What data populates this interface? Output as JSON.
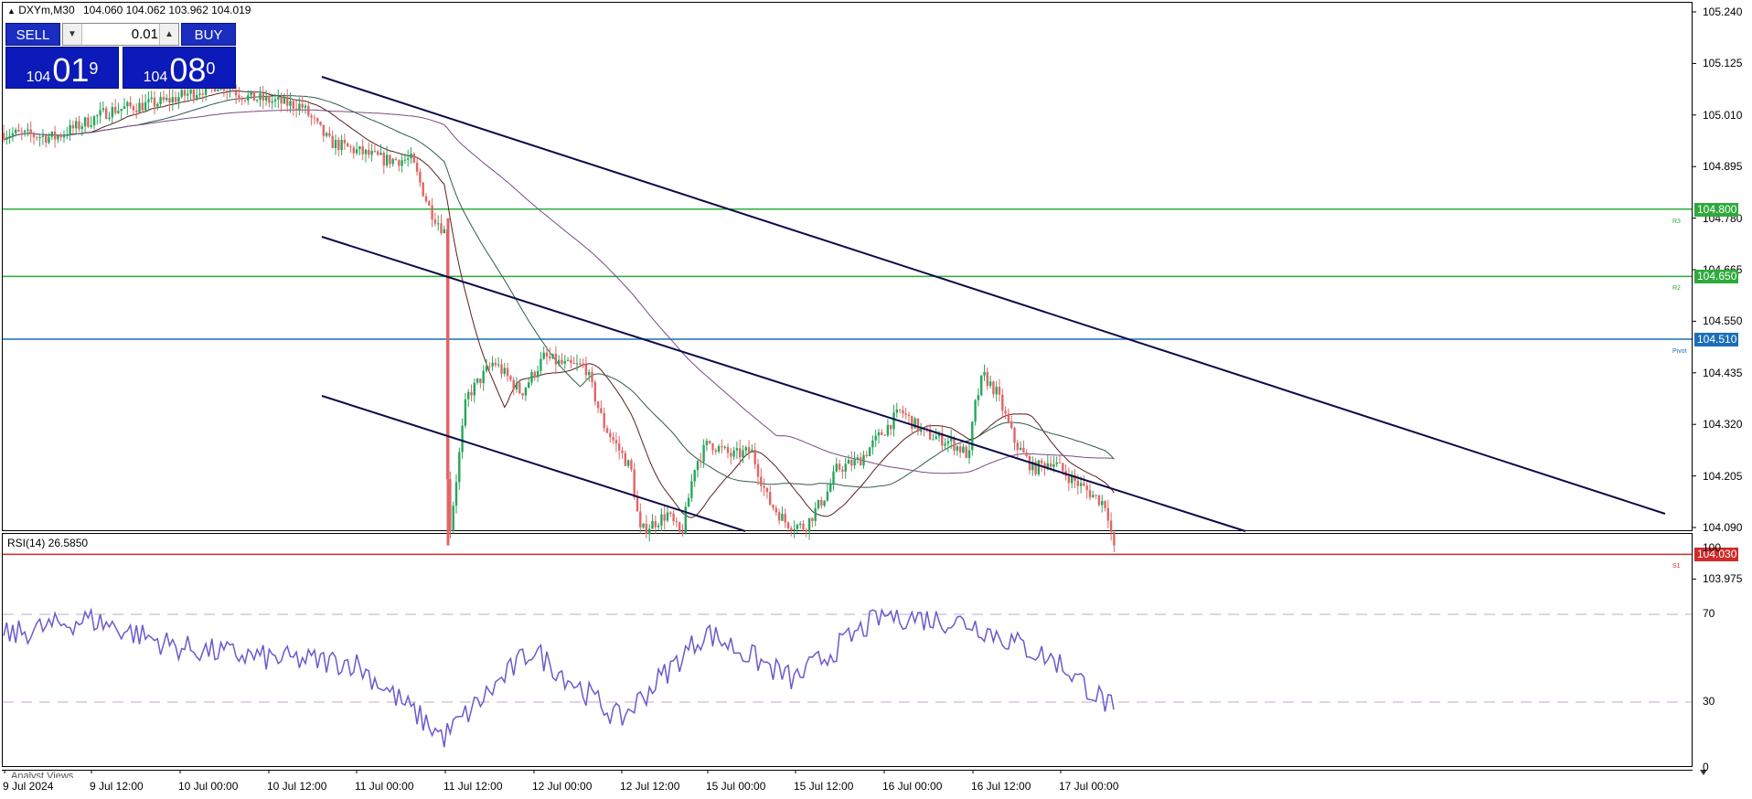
{
  "chart_header": {
    "symbol_timeframe": "DXYm,M30",
    "ohlc": "104.060 104.062 103.962 104.019"
  },
  "one_click_panel": {
    "sell_label": "SELL",
    "buy_label": "BUY",
    "lot_value": "0.01",
    "lot_down_icon": "triangle-down",
    "lot_up_icon": "triangle-up",
    "sell_price": {
      "prefix": "104",
      "main": "01",
      "sup": "9"
    },
    "buy_price": {
      "prefix": "104",
      "main": "08",
      "sup": "0"
    }
  },
  "price_axis": {
    "ticks": [
      "105.240",
      "105.125",
      "105.010",
      "104.895",
      "104.780",
      "104.665",
      "104.550",
      "104.435",
      "104.320",
      "104.205",
      "104.090",
      "103.975"
    ]
  },
  "levels": [
    {
      "name": "R3",
      "price": 104.8,
      "label": "104.800",
      "color": "#2eaa3a"
    },
    {
      "name": "R2",
      "price": 104.65,
      "label": "104.650",
      "color": "#2eaa3a"
    },
    {
      "name": "Pivot",
      "price": 104.51,
      "label": "104.510",
      "color": "#1a6fb8"
    },
    {
      "name": "S1",
      "price": 104.03,
      "label": "104.030",
      "color": "#d02a2a"
    }
  ],
  "rsi": {
    "label": "RSI(14) 26.5850",
    "levels": [
      "100",
      "70",
      "30",
      "0"
    ]
  },
  "time_axis": {
    "labels": [
      "9 Jul 2024",
      "9 Jul 12:00",
      "10 Jul 00:00",
      "10 Jul 12:00",
      "11 Jul 00:00",
      "11 Jul 12:00",
      "12 Jul 00:00",
      "12 Jul 12:00",
      "15 Jul 00:00",
      "15 Jul 12:00",
      "16 Jul 00:00",
      "16 Jul 12:00",
      "17 Jul 00:00"
    ]
  },
  "bottom_tab": "Analyst Views",
  "chart_data": {
    "type": "line",
    "title": "DXYm,M30",
    "price_close_path": [
      [
        "9 Jul 2024",
        105.0
      ],
      [
        "9 Jul 12:00",
        105.02
      ],
      [
        "10 Jul 00:00",
        105.07
      ],
      [
        "10 Jul 12:00",
        105.05
      ],
      [
        "11 Jul 00:00",
        104.85
      ],
      [
        "11 Jul 00:00",
        104.05
      ],
      [
        "11 Jul 12:00",
        104.45
      ],
      [
        "12 Jul 00:00",
        104.48
      ],
      [
        "12 Jul 12:00",
        104.08
      ],
      [
        "15 Jul 00:00",
        104.28
      ],
      [
        "15 Jul 12:00",
        104.12
      ],
      [
        "16 Jul 00:00",
        104.35
      ],
      [
        "16 Jul 12:00",
        104.4
      ],
      [
        "17 Jul 00:00",
        104.18
      ],
      [
        "17 Jul 00:00",
        104.02
      ]
    ],
    "rsi_path": [
      [
        "9 Jul 2024",
        60
      ],
      [
        "9 Jul 12:00",
        68
      ],
      [
        "10 Jul 00:00",
        55
      ],
      [
        "10 Jul 12:00",
        50
      ],
      [
        "11 Jul 00:00",
        48
      ],
      [
        "11 Jul 12:00",
        14
      ],
      [
        "12 Jul 00:00",
        54
      ],
      [
        "12 Jul 12:00",
        22
      ],
      [
        "15 Jul 00:00",
        62
      ],
      [
        "15 Jul 12:00",
        40
      ],
      [
        "16 Jul 00:00",
        70
      ],
      [
        "16 Jul 12:00",
        66
      ],
      [
        "17 Jul 00:00",
        48
      ],
      [
        "17 Jul 00:00",
        26.585
      ]
    ]
  }
}
